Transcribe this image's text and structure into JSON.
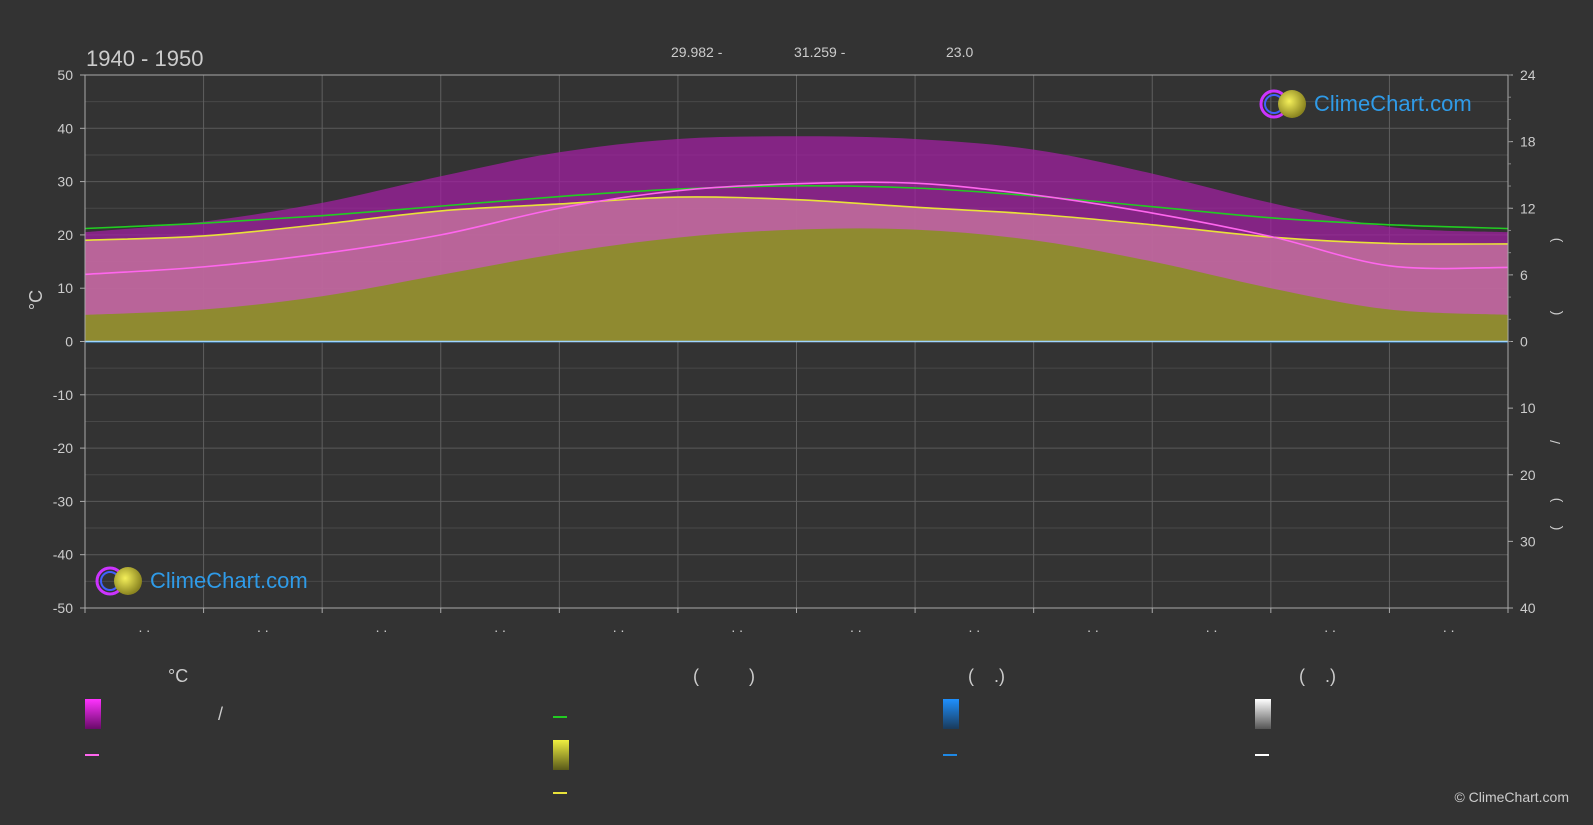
{
  "chart_data": {
    "type": "area",
    "title": "1940 - 1950",
    "ylabel_left": "°C",
    "header_values": [
      "29.982 -",
      "31.259 -",
      "23.0"
    ],
    "ylim_left": [
      -50,
      50
    ],
    "yticks_left": [
      50,
      40,
      30,
      20,
      10,
      0,
      -10,
      -20,
      -30,
      -40,
      -50
    ],
    "right_ticks_top": [
      24,
      18,
      12,
      6,
      0
    ],
    "right_ticks_bottom": [
      10,
      20,
      30,
      40
    ],
    "right_axis_glyphs": [
      ")",
      "(",
      "/",
      ")",
      "("
    ],
    "month_tick_labels": [
      ". .",
      ". .",
      ". .",
      ". .",
      ". .",
      ". .",
      ". .",
      ". .",
      ". .",
      ". .",
      ". .",
      ". ."
    ],
    "series": [
      {
        "key": "daylight",
        "color": "#22cc22",
        "x": [
          0,
          1,
          2,
          3,
          4,
          5,
          6,
          7,
          8,
          9,
          10,
          11,
          12
        ],
        "values": [
          21.2,
          22.2,
          23.6,
          25.4,
          27.2,
          28.6,
          29.2,
          28.8,
          27.3,
          25.3,
          23.2,
          21.9,
          21.2
        ]
      },
      {
        "key": "sunshine",
        "color": "#e8e23a",
        "x": [
          0,
          1,
          2,
          3,
          4,
          5,
          6,
          7,
          8,
          9,
          10,
          11,
          12
        ],
        "values": [
          19.0,
          19.8,
          22.0,
          24.5,
          25.8,
          27.1,
          26.6,
          25.2,
          23.9,
          21.9,
          19.6,
          18.4,
          18.3
        ]
      },
      {
        "key": "max_temp_monthly",
        "color": "#ff66ee",
        "x": [
          0,
          1,
          2,
          3,
          4,
          5,
          6,
          7,
          8,
          9,
          10,
          11,
          12
        ],
        "values": [
          12.6,
          14.0,
          16.5,
          20.0,
          25.0,
          28.3,
          29.6,
          29.7,
          27.5,
          24.1,
          19.7,
          14.2,
          13.9
        ]
      },
      {
        "key": "max_temp_envelope",
        "color": "#cc22cc",
        "x": [
          0,
          1,
          2,
          3,
          4,
          5,
          6,
          7,
          8,
          9,
          10,
          11,
          12
        ],
        "values": [
          20.5,
          22.5,
          26.0,
          31.0,
          35.5,
          38.0,
          38.5,
          38.0,
          36.0,
          31.5,
          26.0,
          21.5,
          20.5
        ]
      },
      {
        "key": "min_temp_envelope",
        "color": "#777777",
        "x": [
          0,
          1,
          2,
          3,
          4,
          5,
          6,
          7,
          8,
          9,
          10,
          11,
          12
        ],
        "values": [
          5.0,
          6.0,
          8.5,
          12.5,
          16.5,
          19.5,
          21.0,
          21.0,
          19.0,
          15.0,
          10.0,
          6.0,
          5.0
        ]
      },
      {
        "key": "precipitation",
        "color": "#1e88e5",
        "x": [
          0,
          1,
          2,
          3,
          4,
          5,
          6,
          7,
          8,
          9,
          10,
          11,
          12
        ],
        "values": [
          0.3,
          0.3,
          0.3,
          0.2,
          0.1,
          0.0,
          0.0,
          0.0,
          0.0,
          0.1,
          0.3,
          0.3,
          0.3
        ]
      }
    ],
    "legend": {
      "col1_header": "°C",
      "col1_slash": "/",
      "col2_header": "(          )",
      "col3_header": "(    .)",
      "col4_header": "(    .)"
    },
    "colors": {
      "background": "#333333",
      "grid": "#555555",
      "zero_line": "#9fd4ff",
      "magenta": "#cc22cc",
      "olive": "#8c8c2a",
      "pink_band": "#c06a9a",
      "accent_blue": "#2f9be8"
    },
    "watermark": "ClimeChart.com",
    "copyright": "© ClimeChart.com"
  }
}
